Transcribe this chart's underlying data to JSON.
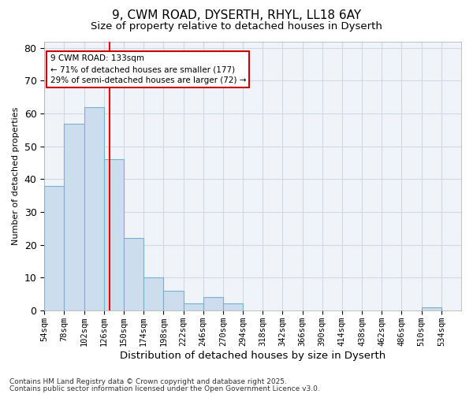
{
  "title1": "9, CWM ROAD, DYSERTH, RHYL, LL18 6AY",
  "title2": "Size of property relative to detached houses in Dyserth",
  "xlabel": "Distribution of detached houses by size in Dyserth",
  "ylabel": "Number of detached properties",
  "bin_labels": [
    "54sqm",
    "78sqm",
    "102sqm",
    "126sqm",
    "150sqm",
    "174sqm",
    "198sqm",
    "222sqm",
    "246sqm",
    "270sqm",
    "294sqm",
    "318sqm",
    "342sqm",
    "366sqm",
    "390sqm",
    "414sqm",
    "438sqm",
    "462sqm",
    "486sqm",
    "510sqm",
    "534sqm"
  ],
  "bin_edges": [
    54,
    78,
    102,
    126,
    150,
    174,
    198,
    222,
    246,
    270,
    294,
    318,
    342,
    366,
    390,
    414,
    438,
    462,
    486,
    510,
    534,
    558
  ],
  "bar_heights": [
    38,
    57,
    62,
    46,
    22,
    10,
    6,
    2,
    4,
    2,
    0,
    0,
    0,
    0,
    0,
    0,
    0,
    0,
    0,
    1,
    0
  ],
  "bar_color": "#ccdded",
  "bar_edge_color": "#7ab0d0",
  "red_line_x": 133,
  "annotation_line1": "9 CWM ROAD: 133sqm",
  "annotation_line2": "← 71% of detached houses are smaller (177)",
  "annotation_line3": "29% of semi-detached houses are larger (72) →",
  "annotation_box_color": "#ffffff",
  "annotation_box_edge": "#cc0000",
  "ylim": [
    0,
    82
  ],
  "yticks": [
    0,
    10,
    20,
    30,
    40,
    50,
    60,
    70,
    80
  ],
  "footer1": "Contains HM Land Registry data © Crown copyright and database right 2025.",
  "footer2": "Contains public sector information licensed under the Open Government Licence v3.0.",
  "bg_color": "#ffffff",
  "plot_bg_color": "#f0f4f8",
  "grid_color": "#d0d8e4",
  "title1_fontsize": 11,
  "title2_fontsize": 9.5
}
